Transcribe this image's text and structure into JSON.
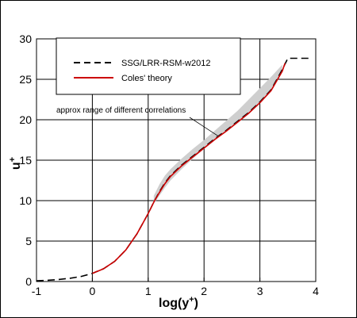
{
  "chart_data": {
    "type": "line",
    "title": "",
    "xlabel": "log(y",
    "xlabel_sup": "+",
    "xlabel_close": ")",
    "ylabel": "u",
    "ylabel_sup": "+",
    "xlim": [
      -1,
      4
    ],
    "ylim": [
      0,
      30
    ],
    "xticks": [
      -1,
      0,
      1,
      2,
      3,
      4
    ],
    "yticks": [
      0,
      5,
      10,
      15,
      20,
      25,
      30
    ],
    "grid": true,
    "legend_position": "top-left",
    "series": [
      {
        "name": "SSG/LRR-RSM-w2012",
        "color": "#000000",
        "dash": "dashed",
        "x": [
          -1.0,
          -0.8,
          -0.6,
          -0.4,
          -0.2,
          0.0,
          0.2,
          0.4,
          0.6,
          0.8,
          1.0,
          1.1,
          1.2,
          1.3,
          1.4,
          1.6,
          1.8,
          2.0,
          2.2,
          2.4,
          2.6,
          2.8,
          3.0,
          3.2,
          3.4,
          3.5,
          3.6,
          3.9
        ],
        "y": [
          0.1,
          0.16,
          0.25,
          0.4,
          0.63,
          1.0,
          1.58,
          2.5,
          3.9,
          5.9,
          8.4,
          9.8,
          11.1,
          12.2,
          13.1,
          14.4,
          15.5,
          16.6,
          17.7,
          18.7,
          19.8,
          20.9,
          22.2,
          23.7,
          26.2,
          27.6,
          27.6,
          27.6
        ]
      },
      {
        "name": "Coles' theory",
        "color": "#cc0000",
        "dash": "solid",
        "x": [
          0.0,
          0.2,
          0.4,
          0.6,
          0.8,
          1.0,
          1.1,
          1.2,
          1.3,
          1.4,
          1.6,
          1.8,
          2.0,
          2.2,
          2.4,
          2.6,
          2.8,
          3.0,
          3.2,
          3.4,
          3.45
        ],
        "y": [
          1.0,
          1.58,
          2.5,
          3.9,
          5.9,
          8.4,
          9.8,
          11.0,
          12.1,
          13.0,
          14.3,
          15.4,
          16.5,
          17.6,
          18.6,
          19.7,
          20.8,
          22.1,
          23.6,
          26.0,
          27.0
        ]
      }
    ],
    "band": {
      "x": [
        1.1,
        1.2,
        1.3,
        1.4,
        1.6,
        1.8,
        2.0,
        2.2,
        2.4,
        2.6,
        2.8,
        3.0,
        3.2,
        3.4
      ],
      "upper": [
        10.6,
        12.0,
        13.1,
        13.9,
        15.2,
        16.4,
        17.5,
        18.7,
        19.9,
        21.1,
        22.5,
        23.9,
        25.3,
        26.8
      ],
      "lower": [
        9.6,
        10.6,
        11.6,
        12.5,
        13.9,
        15.2,
        16.4,
        17.5,
        18.6,
        19.6,
        20.7,
        22.0,
        23.5,
        25.9
      ]
    },
    "annotation": {
      "text": "approx range of different correlations",
      "target_x": 2.25,
      "target_y": 18.0
    }
  }
}
